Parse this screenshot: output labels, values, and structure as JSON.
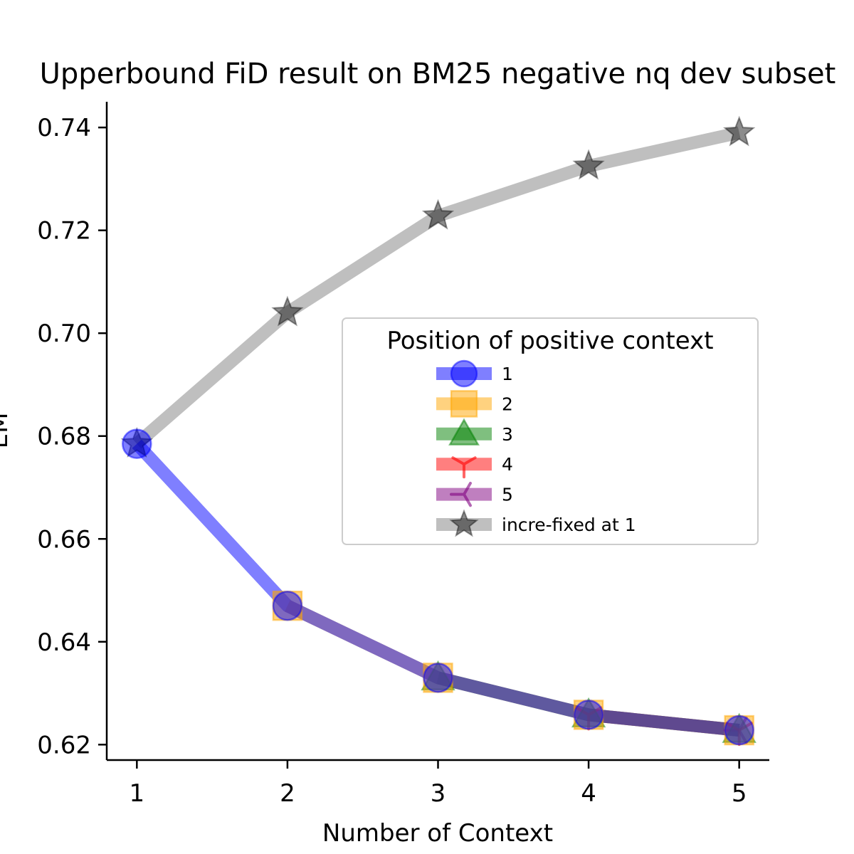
{
  "chart_data": {
    "type": "line",
    "title": "Upperbound FiD result on BM25 negative nq dev subset",
    "xlabel": "Number of Context",
    "ylabel": "EM",
    "x": [
      1,
      2,
      3,
      4,
      5
    ],
    "xlim": [
      0.8,
      5.2
    ],
    "ylim": [
      0.617,
      0.745
    ],
    "yticks": [
      0.62,
      0.64,
      0.66,
      0.68,
      0.7,
      0.72,
      0.74
    ],
    "ytick_labels": [
      "0.62",
      "0.64",
      "0.66",
      "0.68",
      "0.70",
      "0.72",
      "0.74"
    ],
    "xticks": [
      1,
      2,
      3,
      4,
      5
    ],
    "xtick_labels": [
      "1",
      "2",
      "3",
      "4",
      "5"
    ],
    "grid": false,
    "legend": {
      "title": "Position of positive context",
      "placement": "center-right"
    },
    "series": [
      {
        "name": "1",
        "color": "#0000ff",
        "marker": "circle",
        "x": [
          1,
          2,
          3,
          4,
          5
        ],
        "values": [
          0.6785,
          0.647,
          0.633,
          0.6258,
          0.6228
        ]
      },
      {
        "name": "2",
        "color": "#ffa500",
        "marker": "square",
        "x": [
          2,
          3,
          4,
          5
        ],
        "values": [
          0.647,
          0.633,
          0.6258,
          0.6228
        ]
      },
      {
        "name": "3",
        "color": "#008000",
        "marker": "triangle",
        "x": [
          3,
          4,
          5
        ],
        "values": [
          0.633,
          0.6258,
          0.6228
        ]
      },
      {
        "name": "4",
        "color": "#ff0000",
        "marker": "tri-down",
        "x": [
          4,
          5
        ],
        "values": [
          0.6258,
          0.6228
        ]
      },
      {
        "name": "5",
        "color": "#800080",
        "marker": "tri-left",
        "x": [
          5
        ],
        "values": [
          0.6228
        ]
      },
      {
        "name": "incre-fixed at 1",
        "color": "#808080",
        "marker": "star",
        "x": [
          1,
          2,
          3,
          4,
          5
        ],
        "values": [
          0.6785,
          0.704,
          0.7228,
          0.7325,
          0.739
        ]
      }
    ]
  }
}
